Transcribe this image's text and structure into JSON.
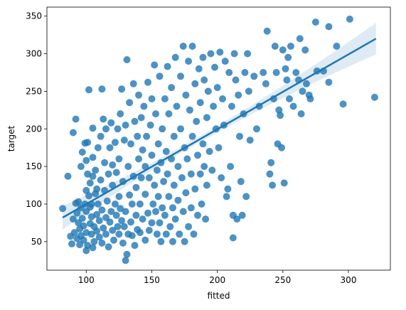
{
  "chart_data": {
    "type": "scatter",
    "title": "",
    "xlabel": "fitted",
    "ylabel": "target",
    "xlim": [
      70,
      332
    ],
    "ylim": [
      12,
      362
    ],
    "xticks": [
      100,
      150,
      200,
      250,
      300
    ],
    "yticks": [
      50,
      100,
      150,
      200,
      250,
      300,
      350
    ],
    "grid": false,
    "legend": "none",
    "colors": {
      "points": "#1f77b4",
      "line": "#1f77b4",
      "band": "#1f77b4"
    },
    "regression": {
      "x_start": 82,
      "x_end": 321,
      "y_start": 82,
      "y_end": 320,
      "band_half_width_start": 16,
      "band_half_width_mid": 4,
      "band_half_width_end": 21
    },
    "points": [
      [
        82,
        94
      ],
      [
        86,
        137
      ],
      [
        88,
        57
      ],
      [
        89,
        47
      ],
      [
        90,
        80
      ],
      [
        90,
        195
      ],
      [
        91,
        62
      ],
      [
        92,
        101
      ],
      [
        92,
        213
      ],
      [
        93,
        54
      ],
      [
        93,
        88
      ],
      [
        94,
        75
      ],
      [
        94,
        103
      ],
      [
        95,
        46
      ],
      [
        95,
        67
      ],
      [
        96,
        58
      ],
      [
        96,
        95
      ],
      [
        96,
        150
      ],
      [
        97,
        81
      ],
      [
        97,
        169
      ],
      [
        98,
        52
      ],
      [
        98,
        71
      ],
      [
        99,
        100
      ],
      [
        99,
        181
      ],
      [
        100,
        38
      ],
      [
        100,
        62
      ],
      [
        100,
        90
      ],
      [
        100,
        118
      ],
      [
        100,
        158
      ],
      [
        101,
        45
      ],
      [
        101,
        140
      ],
      [
        101,
        182
      ],
      [
        102,
        252
      ],
      [
        102,
        111
      ],
      [
        103,
        74
      ],
      [
        103,
        96
      ],
      [
        103,
        128
      ],
      [
        104,
        60
      ],
      [
        104,
        83
      ],
      [
        104,
        100
      ],
      [
        105,
        42
      ],
      [
        105,
        137
      ],
      [
        105,
        162
      ],
      [
        105,
        201
      ],
      [
        106,
        70
      ],
      [
        106,
        50
      ],
      [
        107,
        114
      ],
      [
        107,
        145
      ],
      [
        108,
        120
      ],
      [
        108,
        86
      ],
      [
        108,
        64
      ],
      [
        109,
        100
      ],
      [
        109,
        175
      ],
      [
        110,
        56
      ],
      [
        110,
        78
      ],
      [
        111,
        132
      ],
      [
        111,
        190
      ],
      [
        112,
        253
      ],
      [
        112,
        92
      ],
      [
        112,
        48
      ],
      [
        113,
        68
      ],
      [
        113,
        213
      ],
      [
        114,
        155
      ],
      [
        114,
        118
      ],
      [
        115,
        82
      ],
      [
        115,
        60
      ],
      [
        115,
        200
      ],
      [
        116,
        104
      ],
      [
        117,
        140
      ],
      [
        117,
        43
      ],
      [
        118,
        76
      ],
      [
        118,
        175
      ],
      [
        119,
        90
      ],
      [
        119,
        208
      ],
      [
        120,
        65
      ],
      [
        120,
        125
      ],
      [
        120,
        152
      ],
      [
        121,
        52
      ],
      [
        122,
        100
      ],
      [
        122,
        182
      ],
      [
        123,
        85
      ],
      [
        123,
        142
      ],
      [
        124,
        70
      ],
      [
        124,
        200
      ],
      [
        125,
        60
      ],
      [
        125,
        160
      ],
      [
        125,
        110
      ],
      [
        126,
        220
      ],
      [
        126,
        94
      ],
      [
        127,
        78
      ],
      [
        127,
        253
      ],
      [
        128,
        130
      ],
      [
        128,
        48
      ],
      [
        129,
        185
      ],
      [
        129,
        70
      ],
      [
        130,
        205
      ],
      [
        130,
        90
      ],
      [
        130,
        25
      ],
      [
        131,
        33
      ],
      [
        131,
        292
      ],
      [
        132,
        60
      ],
      [
        132,
        150
      ],
      [
        133,
        235
      ],
      [
        133,
        112
      ],
      [
        134,
        76
      ],
      [
        134,
        180
      ],
      [
        135,
        58
      ],
      [
        135,
        100
      ],
      [
        136,
        137
      ],
      [
        136,
        260
      ],
      [
        137,
        210
      ],
      [
        137,
        45
      ],
      [
        138,
        85
      ],
      [
        138,
        122
      ],
      [
        139,
        66
      ],
      [
        139,
        190
      ],
      [
        140,
        245
      ],
      [
        140,
        160
      ],
      [
        141,
        100
      ],
      [
        141,
        62
      ],
      [
        142,
        135
      ],
      [
        142,
        215
      ],
      [
        143,
        80
      ],
      [
        143,
        172
      ],
      [
        144,
        230
      ],
      [
        145,
        52
      ],
      [
        145,
        150
      ],
      [
        145,
        113
      ],
      [
        146,
        190
      ],
      [
        147,
        262
      ],
      [
        147,
        88
      ],
      [
        148,
        65
      ],
      [
        148,
        135
      ],
      [
        149,
        205
      ],
      [
        150,
        75
      ],
      [
        150,
        240
      ],
      [
        150,
        165
      ],
      [
        151,
        100
      ],
      [
        152,
        125
      ],
      [
        152,
        285
      ],
      [
        153,
        90
      ],
      [
        153,
        220
      ],
      [
        154,
        145
      ],
      [
        154,
        60
      ],
      [
        155,
        180
      ],
      [
        155,
        110
      ],
      [
        156,
        270
      ],
      [
        156,
        75
      ],
      [
        157,
        155
      ],
      [
        157,
        50
      ],
      [
        158,
        200
      ],
      [
        158,
        95
      ],
      [
        159,
        130
      ],
      [
        160,
        240
      ],
      [
        160,
        85
      ],
      [
        161,
        170
      ],
      [
        161,
        60
      ],
      [
        162,
        283
      ],
      [
        162,
        140
      ],
      [
        163,
        110
      ],
      [
        163,
        220
      ],
      [
        164,
        70
      ],
      [
        165,
        160
      ],
      [
        165,
        255
      ],
      [
        166,
        95
      ],
      [
        166,
        50
      ],
      [
        167,
        190
      ],
      [
        167,
        125
      ],
      [
        168,
        295
      ],
      [
        168,
        80
      ],
      [
        169,
        230
      ],
      [
        170,
        150
      ],
      [
        170,
        105
      ],
      [
        171,
        60
      ],
      [
        172,
        270
      ],
      [
        172,
        200
      ],
      [
        173,
        135
      ],
      [
        174,
        90
      ],
      [
        174,
        310
      ],
      [
        175,
        175
      ],
      [
        175,
        50
      ],
      [
        176,
        245
      ],
      [
        176,
        115
      ],
      [
        177,
        160
      ],
      [
        178,
        290
      ],
      [
        178,
        70
      ],
      [
        179,
        225
      ],
      [
        180,
        140
      ],
      [
        180,
        95
      ],
      [
        181,
        310
      ],
      [
        181,
        190
      ],
      [
        182,
        60
      ],
      [
        183,
        260
      ],
      [
        183,
        120
      ],
      [
        184,
        210
      ],
      [
        185,
        85
      ],
      [
        185,
        165
      ],
      [
        186,
        280
      ],
      [
        187,
        140
      ],
      [
        187,
        235
      ],
      [
        188,
        100
      ],
      [
        189,
        180
      ],
      [
        189,
        295
      ],
      [
        190,
        150
      ],
      [
        190,
        265
      ],
      [
        191,
        80
      ],
      [
        192,
        215
      ],
      [
        192,
        125
      ],
      [
        193,
        250
      ],
      [
        194,
        170
      ],
      [
        195,
        300
      ],
      [
        196,
        145
      ],
      [
        197,
        230
      ],
      [
        198,
        282
      ],
      [
        199,
        200
      ],
      [
        200,
        255
      ],
      [
        201,
        175
      ],
      [
        202,
        302
      ],
      [
        203,
        135
      ],
      [
        204,
        240
      ],
      [
        205,
        205
      ],
      [
        206,
        290
      ],
      [
        207,
        110
      ],
      [
        208,
        120
      ],
      [
        209,
        275
      ],
      [
        210,
        150
      ],
      [
        211,
        230
      ],
      [
        212,
        55
      ],
      [
        212,
        85
      ],
      [
        213,
        300
      ],
      [
        214,
        265
      ],
      [
        215,
        80
      ],
      [
        216,
        245
      ],
      [
        217,
        190
      ],
      [
        218,
        130
      ],
      [
        219,
        85
      ],
      [
        220,
        220
      ],
      [
        221,
        275
      ],
      [
        222,
        110
      ],
      [
        223,
        300
      ],
      [
        224,
        250
      ],
      [
        225,
        185
      ],
      [
        228,
        270
      ],
      [
        230,
        200
      ],
      [
        232,
        230
      ],
      [
        235,
        275
      ],
      [
        237,
        260
      ],
      [
        238,
        330
      ],
      [
        240,
        140
      ],
      [
        241,
        155
      ],
      [
        242,
        125
      ],
      [
        243,
        240
      ],
      [
        244,
        310
      ],
      [
        245,
        275
      ],
      [
        246,
        180
      ],
      [
        247,
        225
      ],
      [
        248,
        218
      ],
      [
        249,
        175
      ],
      [
        250,
        305
      ],
      [
        251,
        128
      ],
      [
        252,
        280
      ],
      [
        253,
        265
      ],
      [
        254,
        295
      ],
      [
        255,
        240
      ],
      [
        256,
        310
      ],
      [
        258,
        230
      ],
      [
        260,
        275
      ],
      [
        262,
        265
      ],
      [
        263,
        320
      ],
      [
        264,
        220
      ],
      [
        265,
        250
      ],
      [
        267,
        305
      ],
      [
        268,
        260
      ],
      [
        270,
        245
      ],
      [
        271,
        240
      ],
      [
        275,
        342
      ],
      [
        276,
        277
      ],
      [
        281,
        277
      ],
      [
        285,
        336
      ],
      [
        285,
        262
      ],
      [
        291,
        310
      ],
      [
        296,
        233
      ],
      [
        301,
        346
      ],
      [
        320,
        242
      ]
    ]
  }
}
